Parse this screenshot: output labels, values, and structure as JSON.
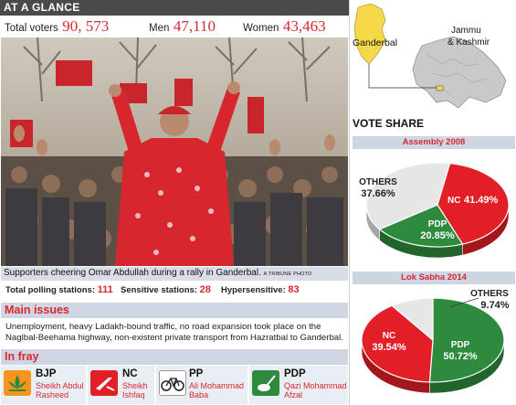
{
  "header": {
    "title": "AT A GLANCE"
  },
  "stats": {
    "total_label": "Total voters",
    "total_value": "90, 573",
    "men_label": "Men",
    "men_value": "47,110",
    "women_label": "Women",
    "women_value": "43,463"
  },
  "photo": {
    "caption": "Supporters cheering Omar Abdullah during a rally in Ganderbal.",
    "credit": "A TRIBUNE PHOTO"
  },
  "polling": {
    "total_label": "Total polling stations:",
    "total_value": "111",
    "sensitive_label": "Sensitive stations:",
    "sensitive_value": "28",
    "hyper_label": "Hypersensitive:",
    "hyper_value": "83"
  },
  "issues": {
    "title": "Main issues",
    "text": "Unemployment, heavy Ladakh-bound traffic, no road expansion took place on the Naglbal-Beehama highway, non-existent private transport from Hazratbal to Ganderbal."
  },
  "fray": {
    "title": "In fray",
    "parties": [
      {
        "abbr": "BJP",
        "candidate_line1": "Sheikh Abdul",
        "candidate_line2": "Rasheed",
        "symbol": "lotus-icon",
        "color": "#f7941d"
      },
      {
        "abbr": "NC",
        "candidate_line1": "Sheikh",
        "candidate_line2": "Ishfaq",
        "symbol": "plough-icon",
        "color": "#e21f26"
      },
      {
        "abbr": "PP",
        "candidate_line1": "Ali Mohammad",
        "candidate_line2": "Baba",
        "symbol": "bicycle-icon",
        "color": "#ffffff"
      },
      {
        "abbr": "PDP",
        "candidate_line1": "Qazi Mohammad",
        "candidate_line2": "Afzal",
        "symbol": "inkpot-pen-icon",
        "color": "#2e8b3d"
      }
    ]
  },
  "map": {
    "district_label": "Ganderbal",
    "state_label_line1": "Jammu",
    "state_label_line2": "& Kashmir",
    "highlight_color": "#f5d94a"
  },
  "vote_share": {
    "title": "VOTE SHARE"
  },
  "chart_data": [
    {
      "type": "pie",
      "title": "Assembly 2008",
      "slices": [
        {
          "name": "NC",
          "value": 41.49,
          "label": "41.49%",
          "color": "#e21f26"
        },
        {
          "name": "PDP",
          "value": 20.85,
          "label": "20.85%",
          "color": "#2e8b3d"
        },
        {
          "name": "OTHERS",
          "value": 37.66,
          "label": "37.66%",
          "color": "#e6e6e6"
        }
      ]
    },
    {
      "type": "pie",
      "title": "Lok Sabha 2014",
      "slices": [
        {
          "name": "PDP",
          "value": 50.72,
          "label": "50.72%",
          "color": "#2e8b3d"
        },
        {
          "name": "NC",
          "value": 39.54,
          "label": "39.54%",
          "color": "#e21f26"
        },
        {
          "name": "OTHERS",
          "value": 9.74,
          "label": "9.74%",
          "color": "#e6e6e6"
        }
      ]
    }
  ]
}
